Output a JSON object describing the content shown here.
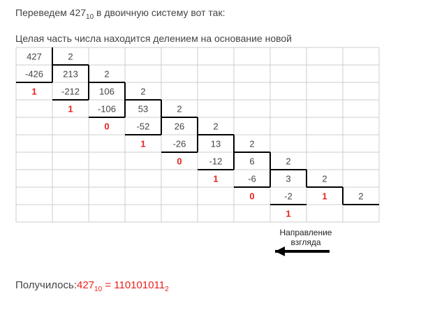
{
  "intro": {
    "before": "Переведем",
    "number": "427",
    "base": "10",
    "after": "в двоичную систему вот так:"
  },
  "subtitle": "Целая часть числа находится делением на основание новой",
  "table": {
    "rows": [
      [
        "427",
        "2",
        null,
        null,
        null,
        null,
        null,
        null,
        null,
        null
      ],
      [
        "-426",
        "213",
        "2",
        null,
        null,
        null,
        null,
        null,
        null,
        null
      ],
      [
        {
          "text": "1",
          "red": true
        },
        "-212",
        "106",
        "2",
        null,
        null,
        null,
        null,
        null,
        null
      ],
      [
        null,
        {
          "text": "1",
          "red": true
        },
        "-106",
        "53",
        "2",
        null,
        null,
        null,
        null,
        null
      ],
      [
        null,
        null,
        {
          "text": "0",
          "red": true
        },
        "-52",
        "26",
        "2",
        null,
        null,
        null,
        null
      ],
      [
        null,
        null,
        null,
        {
          "text": "1",
          "red": true
        },
        "-26",
        "13",
        "2",
        null,
        null,
        null
      ],
      [
        null,
        null,
        null,
        null,
        {
          "text": "0",
          "red": true
        },
        "-12",
        "6",
        "2",
        null,
        null
      ],
      [
        null,
        null,
        null,
        null,
        null,
        {
          "text": "1",
          "red": true
        },
        "-6",
        "3",
        "2",
        null
      ],
      [
        null,
        null,
        null,
        null,
        null,
        null,
        {
          "text": "0",
          "red": true
        },
        "-2",
        {
          "text": "1",
          "red": true
        },
        "2"
      ],
      [
        null,
        null,
        null,
        null,
        null,
        null,
        null,
        {
          "text": "1",
          "red": true
        },
        null,
        null
      ]
    ]
  },
  "annotation": {
    "line1": "Направление",
    "line2": "взгляда"
  },
  "result": {
    "label": "Получилось:",
    "number": "427",
    "base": "10",
    "equals": "=",
    "binary": "110101011",
    "binary_base": "2"
  }
}
